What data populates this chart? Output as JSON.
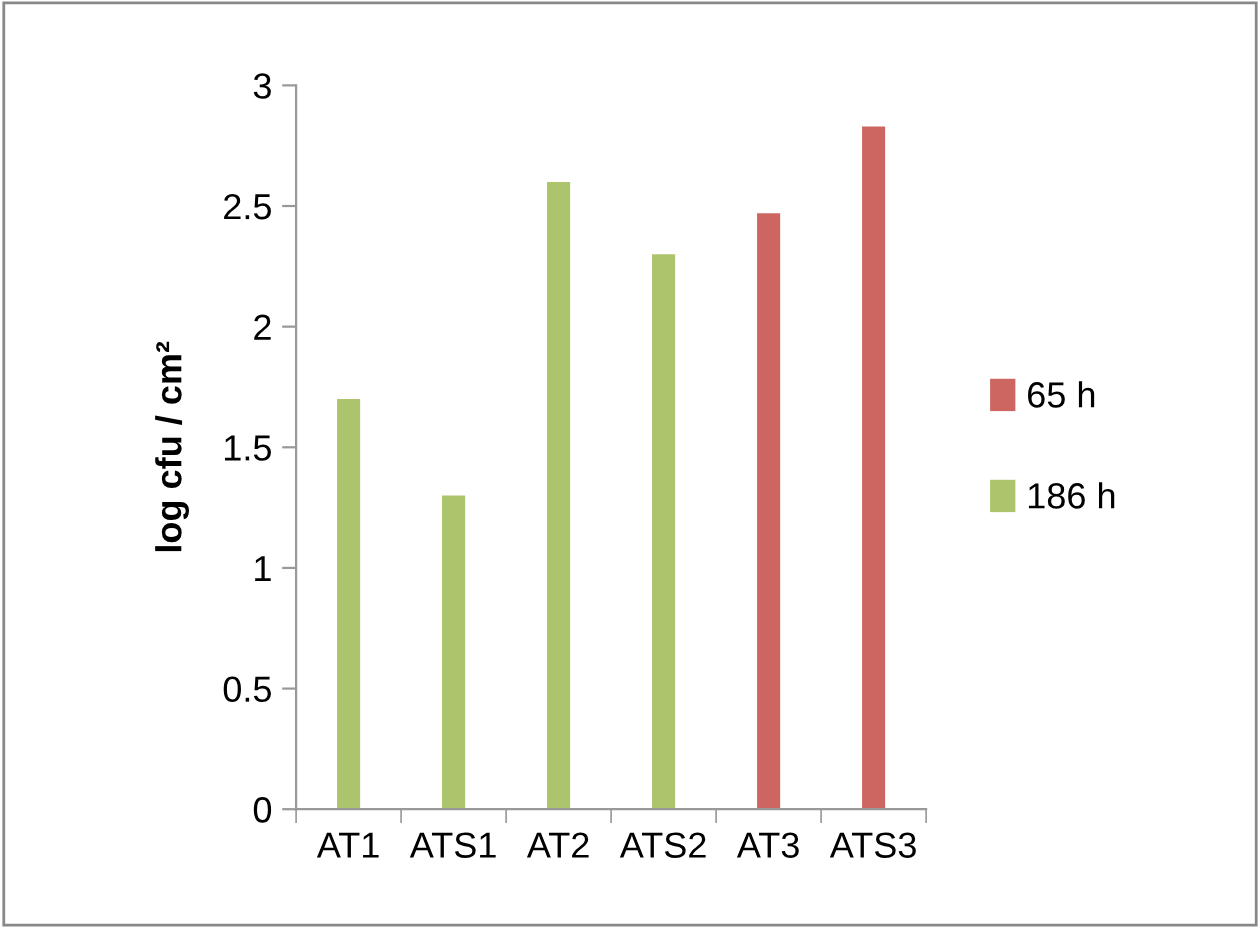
{
  "chart_data": {
    "type": "bar",
    "ylabel": "log cfu / cm²",
    "categories": [
      "AT1",
      "ATS1",
      "AT2",
      "ATS2",
      "AT3",
      "ATS3"
    ],
    "series": [
      {
        "name": "65 h",
        "color": "#cd6660",
        "values": [
          null,
          null,
          null,
          null,
          2.47,
          2.83
        ]
      },
      {
        "name": "186 h",
        "color": "#acc56d",
        "values": [
          1.7,
          1.3,
          2.6,
          2.3,
          null,
          null
        ]
      }
    ],
    "ylim": [
      0,
      3
    ],
    "yticks": [
      0,
      0.5,
      1,
      1.5,
      2,
      2.5,
      3
    ],
    "grid": false,
    "legend": "right"
  }
}
